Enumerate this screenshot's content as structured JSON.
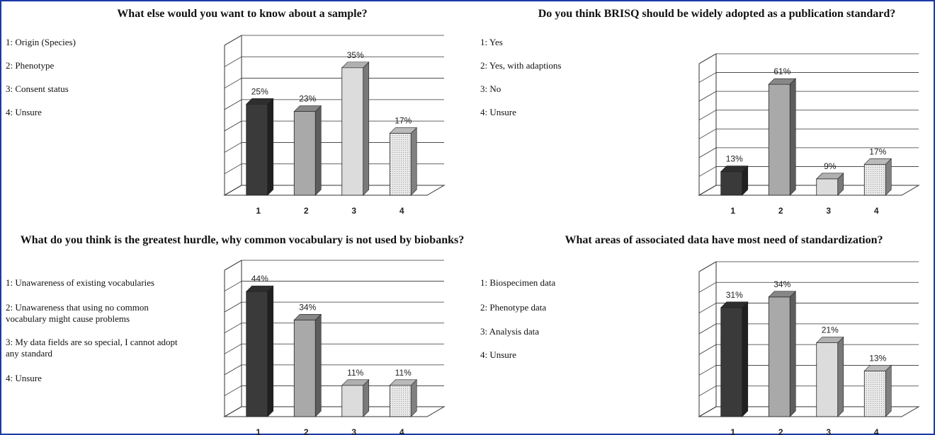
{
  "colors": {
    "dark": "#3a3a3a",
    "mid": "#a9a9a9",
    "light": "#dcdcdc",
    "dotted": "#e9e9e9",
    "frame": "#1a3aa8"
  },
  "chart_data": [
    {
      "type": "bar",
      "title": "What else would you want to know about a sample?",
      "legend": [
        "1: Origin (Species)",
        "2: Phenotype",
        "3: Consent status",
        "4: Unsure"
      ],
      "categories": [
        "1",
        "2",
        "3",
        "4"
      ],
      "values": [
        25,
        23,
        35,
        17
      ],
      "labels": [
        "25%",
        "23%",
        "35%",
        "17%"
      ],
      "ylim": [
        0,
        40
      ],
      "grid": true
    },
    {
      "type": "bar",
      "title": "Do you think BRISQ should be widely adopted as a publication standard?",
      "legend": [
        "1: Yes",
        "2: Yes, with adaptions",
        "3: No",
        "4: Unsure"
      ],
      "categories": [
        "1",
        "2",
        "3",
        "4"
      ],
      "values": [
        13,
        61,
        9,
        17
      ],
      "labels": [
        "13%",
        "61%",
        "9%",
        "17%"
      ],
      "ylim": [
        0,
        70
      ],
      "grid": true
    },
    {
      "type": "bar",
      "title": "What do you think is the greatest hurdle, why common vocabulary is not used by biobanks?",
      "legend": [
        "1: Unawareness of existing vocabularies",
        "2: Unawareness that using no common vocabulary might cause problems",
        "3: My data fields are so special, I cannot adopt any standard",
        "4: Unsure"
      ],
      "categories": [
        "1",
        "2",
        "3",
        "4"
      ],
      "values": [
        44,
        34,
        11,
        11
      ],
      "labels": [
        "44%",
        "34%",
        "11%",
        "11%"
      ],
      "ylim": [
        0,
        50
      ],
      "grid": true
    },
    {
      "type": "bar",
      "title": "What areas of associated data have most need of standardization?",
      "legend": [
        "1: Biospecimen data",
        "2: Phenotype data",
        "3: Analysis data",
        "4: Unsure"
      ],
      "categories": [
        "1",
        "2",
        "3",
        "4"
      ],
      "values": [
        31,
        34,
        21,
        13
      ],
      "labels": [
        "31%",
        "34%",
        "21%",
        "13%"
      ],
      "ylim": [
        0,
        40
      ],
      "grid": true
    }
  ]
}
